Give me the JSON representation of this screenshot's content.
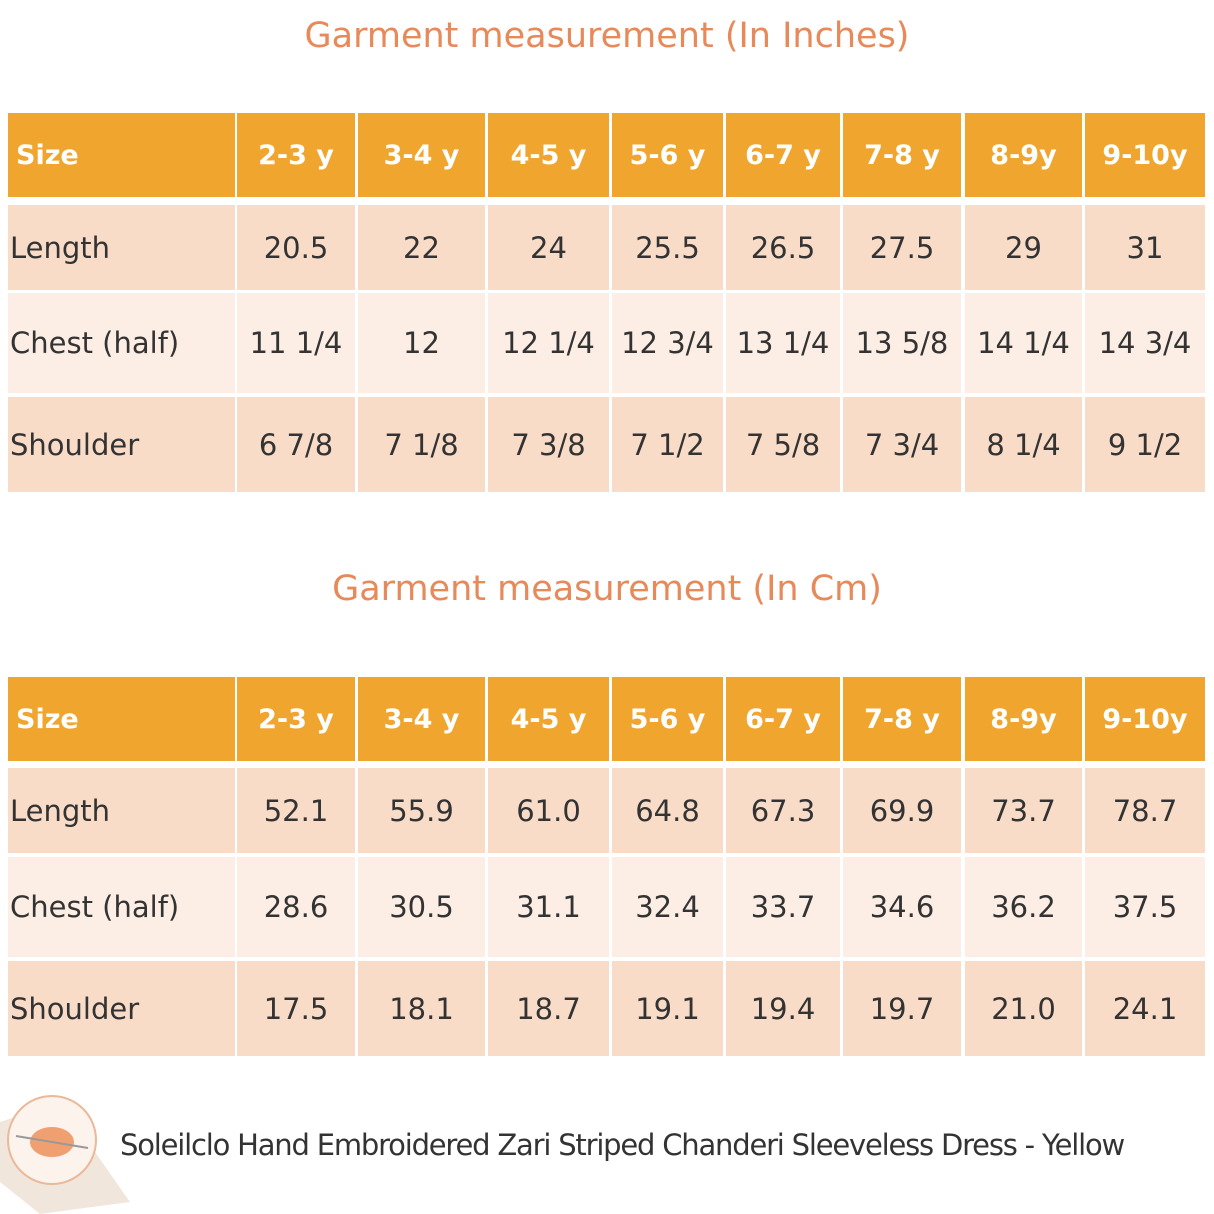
{
  "tables": [
    {
      "title": "Garment measurement (In Inches)",
      "header": [
        "Size",
        "2-3 y",
        "3-4 y",
        "4-5 y",
        "5-6 y",
        "6-7 y",
        "7-8 y",
        "8-9y",
        "9-10y"
      ],
      "rows": [
        [
          "Length",
          "20.5",
          "22",
          "24",
          "25.5",
          "26.5",
          "27.5",
          "29",
          "31"
        ],
        [
          "Chest (half)",
          "11 1/4",
          "12",
          "12 1/4",
          "12 3/4",
          "13 1/4",
          "13 5/8",
          "14 1/4",
          "14 3/4"
        ],
        [
          "Shoulder",
          "6 7/8",
          "7 1/8",
          "7 3/8",
          "7 1/2",
          "7 5/8",
          "7 3/4",
          "8 1/4",
          "9 1/2"
        ]
      ]
    },
    {
      "title": "Garment measurement (In Cm)",
      "header": [
        "Size",
        "2-3 y",
        "3-4 y",
        "4-5 y",
        "5-6 y",
        "6-7 y",
        "7-8 y",
        "8-9y",
        "9-10y"
      ],
      "rows": [
        [
          "Length",
          "52.1",
          "55.9",
          "61.0",
          "64.8",
          "67.3",
          "69.9",
          "73.7",
          "78.7"
        ],
        [
          "Chest (half)",
          "28.6",
          "30.5",
          "31.1",
          "32.4",
          "33.7",
          "34.6",
          "36.2",
          "37.5"
        ],
        [
          "Shoulder",
          "17.5",
          "18.1",
          "18.7",
          "19.1",
          "19.4",
          "19.7",
          "21.0",
          "24.1"
        ]
      ]
    }
  ],
  "caption": "Soleilclo Hand Embroidered Zari Striped Chanderi Sleeveless Dress - Yellow"
}
